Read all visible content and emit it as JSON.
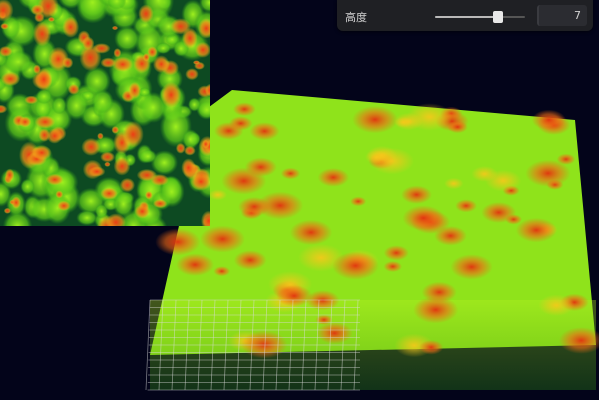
{
  "controls": {
    "height": {
      "label": "高度",
      "value": "7",
      "fraction": 0.7
    }
  },
  "colors": {
    "background": "#03041a",
    "low": "#0a3b1e",
    "mid": "#8ee81c",
    "high": "#f2461e",
    "grid": "#dcdcdc"
  },
  "icons": {
    "surface": "heightmap-surface",
    "preview": "heatmap-preview"
  }
}
